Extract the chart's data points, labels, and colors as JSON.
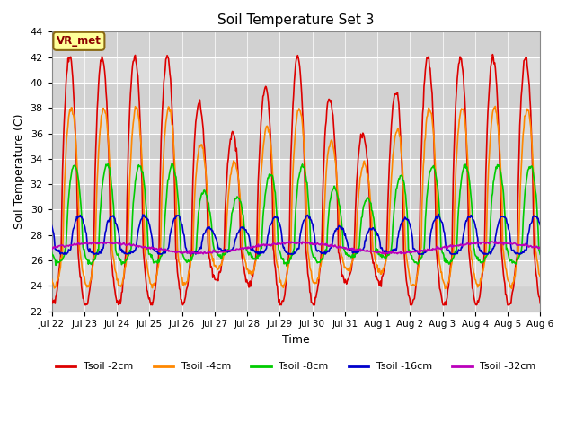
{
  "title": "Soil Temperature Set 3",
  "xlabel": "Time",
  "ylabel": "Soil Temperature (C)",
  "ylim": [
    22,
    44
  ],
  "bg_color": "#dcdcdc",
  "fig_color": "#ffffff",
  "grid_color": "#ffffff",
  "annotation_label": "VR_met",
  "annotation_bg": "#ffff99",
  "annotation_border": "#8B6914",
  "annotation_text_color": "#8B0000",
  "series": {
    "Tsoil -2cm": {
      "color": "#dd0000",
      "lw": 1.2
    },
    "Tsoil -4cm": {
      "color": "#ff8800",
      "lw": 1.2
    },
    "Tsoil -8cm": {
      "color": "#00cc00",
      "lw": 1.2
    },
    "Tsoil -16cm": {
      "color": "#0000cc",
      "lw": 1.2
    },
    "Tsoil -32cm": {
      "color": "#bb00bb",
      "lw": 1.2
    }
  },
  "xtick_labels": [
    "Jul 22",
    "Jul 23",
    "Jul 24",
    "Jul 25",
    "Jul 26",
    "Jul 27",
    "Jul 28",
    "Jul 29",
    "Jul 30",
    "Jul 31",
    "Aug 1",
    "Aug 2",
    "Aug 3",
    "Aug 4",
    "Aug 5",
    "Aug 6"
  ],
  "ytick_values": [
    22,
    24,
    26,
    28,
    30,
    32,
    34,
    36,
    38,
    40,
    42,
    44
  ],
  "n_days": 15,
  "pts_per_day": 48,
  "base_temp": 27.0
}
